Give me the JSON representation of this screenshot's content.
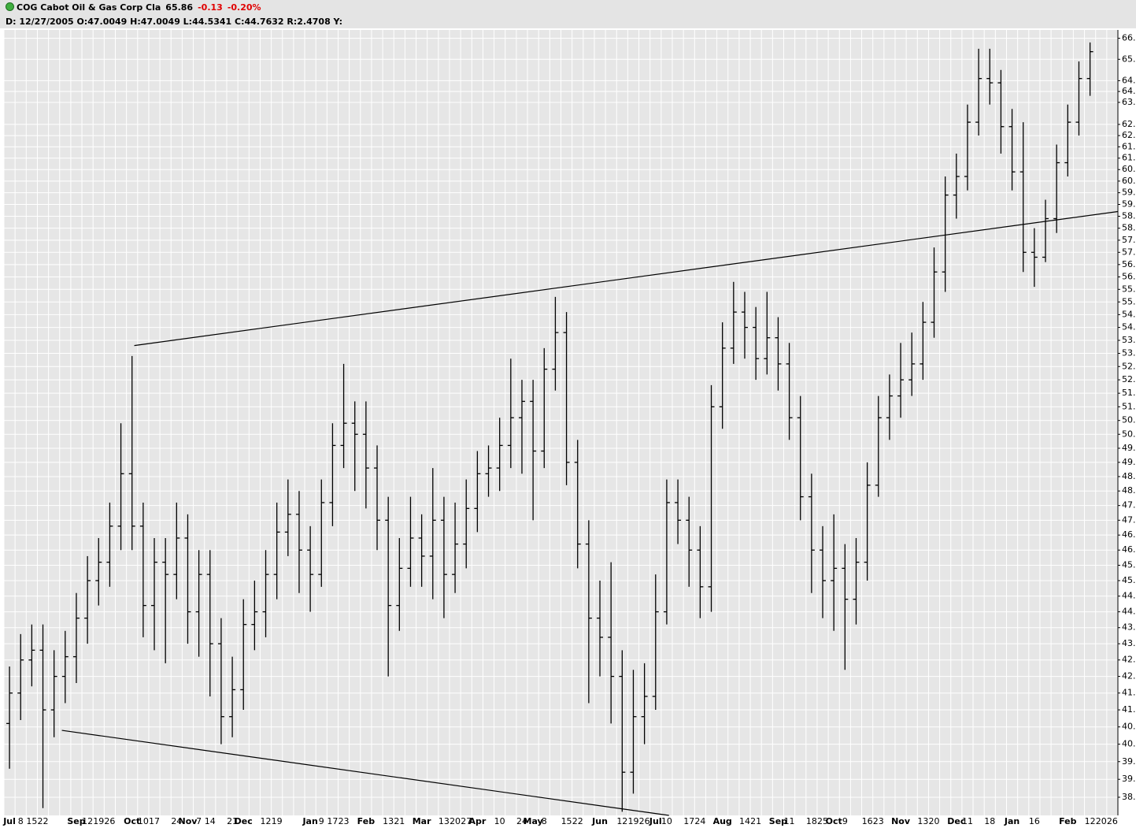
{
  "header": {
    "symbol_name": "COG Cabot Oil & Gas Corp Cla",
    "last": "65.86",
    "change": "-0.13",
    "change_pct": "-0.20%",
    "info": "D: 12/27/2005 O:47.0049 H:47.0049 L:44.5341 C:44.7632 R:2.4708 Y:"
  },
  "chart_data": {
    "type": "ohlc",
    "color": "#000000",
    "log_scale": true,
    "grid": true,
    "categories": [
      "Jul",
      "8",
      "15",
      "22",
      null,
      null,
      "Sep",
      "12",
      "19",
      "26",
      null,
      "Oct",
      "10",
      "17",
      null,
      "24",
      "Nov",
      "7",
      "14",
      null,
      "21",
      "Dec",
      null,
      "12",
      "19",
      null,
      null,
      "Jan",
      "9",
      "17",
      "23",
      null,
      "Feb",
      null,
      "13",
      "21",
      null,
      "Mar",
      null,
      "13",
      "20",
      "27",
      "Apr",
      null,
      "10",
      null,
      "24",
      "May",
      "8",
      null,
      "15",
      "22",
      null,
      "Jun",
      null,
      "12",
      "19",
      "26",
      "Jul",
      "10",
      null,
      "17",
      "24",
      null,
      "Aug",
      null,
      "14",
      "21",
      null,
      "Sep",
      "11",
      null,
      "18",
      "25",
      "Oct",
      "9",
      null,
      "16",
      "23",
      null,
      "Nov",
      null,
      "13",
      "20",
      null,
      "Dec",
      "11",
      null,
      "18",
      null,
      "Jan",
      null,
      "16",
      null,
      null,
      "Feb",
      null,
      "12",
      "20",
      "26"
    ],
    "open": [
      40.6,
      41.5,
      42.5,
      42.8,
      41.0,
      42.0,
      42.6,
      43.8,
      45.0,
      45.6,
      46.8,
      48.6,
      46.8,
      44.2,
      45.6,
      45.2,
      46.4,
      44.0,
      45.2,
      43.0,
      40.8,
      41.6,
      43.6,
      44.0,
      45.2,
      46.6,
      47.2,
      46.0,
      45.2,
      47.6,
      49.6,
      50.4,
      50.0,
      48.8,
      47.0,
      44.2,
      45.4,
      46.4,
      45.8,
      47.0,
      45.2,
      46.2,
      47.4,
      48.6,
      48.8,
      49.6,
      50.6,
      51.2,
      49.4,
      52.4,
      53.8,
      49.0,
      46.2,
      43.8,
      43.2,
      42.0,
      39.2,
      40.8,
      41.4,
      44.0,
      47.6,
      47.0,
      46.0,
      44.8,
      51.0,
      53.2,
      54.6,
      54.0,
      52.8,
      53.6,
      52.6,
      50.6,
      47.8,
      46.0,
      45.0,
      45.4,
      44.4,
      45.6,
      48.2,
      50.6,
      51.4,
      52.0,
      52.6,
      54.2,
      56.2,
      59.4,
      60.2,
      62.6,
      64.6,
      64.4,
      62.4,
      60.4,
      57.0,
      56.8,
      58.4,
      60.8,
      62.6,
      64.6,
      null,
      null
    ],
    "high": [
      42.3,
      43.3,
      43.6,
      43.6,
      42.8,
      43.4,
      44.6,
      45.8,
      46.4,
      47.6,
      50.4,
      52.9,
      47.6,
      46.4,
      46.4,
      47.6,
      47.2,
      46.0,
      46.0,
      43.8,
      42.6,
      44.4,
      45.0,
      46.0,
      47.6,
      48.4,
      48.0,
      46.8,
      48.4,
      50.4,
      52.6,
      51.2,
      51.2,
      49.6,
      47.8,
      46.4,
      47.8,
      47.2,
      48.8,
      47.8,
      47.6,
      48.4,
      49.4,
      49.6,
      50.6,
      52.8,
      52.0,
      52.0,
      53.2,
      55.2,
      54.6,
      49.8,
      47.0,
      45.0,
      45.6,
      42.8,
      42.2,
      42.4,
      45.2,
      48.4,
      48.4,
      47.8,
      46.8,
      51.8,
      54.2,
      55.8,
      55.4,
      54.8,
      55.4,
      54.4,
      53.4,
      51.4,
      48.6,
      46.8,
      47.2,
      46.2,
      46.4,
      49.0,
      51.4,
      52.2,
      53.4,
      53.8,
      55.0,
      57.2,
      60.2,
      61.2,
      63.4,
      66.0,
      66.0,
      65.0,
      63.2,
      62.6,
      58.0,
      59.2,
      61.6,
      63.4,
      65.4,
      66.3,
      null,
      null
    ],
    "low": [
      39.3,
      40.7,
      41.7,
      38.2,
      40.2,
      41.2,
      41.8,
      43.0,
      44.2,
      44.8,
      46.0,
      46.0,
      43.2,
      42.8,
      42.4,
      44.4,
      43.0,
      42.6,
      41.4,
      40.0,
      40.2,
      41.0,
      42.8,
      43.2,
      44.4,
      45.8,
      44.6,
      44.0,
      44.8,
      46.8,
      48.8,
      48.0,
      47.4,
      46.0,
      42.0,
      43.4,
      44.8,
      44.8,
      44.4,
      43.8,
      44.6,
      45.4,
      46.6,
      47.8,
      48.0,
      48.8,
      48.6,
      47.0,
      48.8,
      51.6,
      48.2,
      45.4,
      41.2,
      42.0,
      40.6,
      38.1,
      38.6,
      40.0,
      41.0,
      43.6,
      46.2,
      44.8,
      43.8,
      44.0,
      50.2,
      52.6,
      52.8,
      52.0,
      52.2,
      51.6,
      49.8,
      47.0,
      44.6,
      43.8,
      43.4,
      42.2,
      43.6,
      45.0,
      47.8,
      49.8,
      50.6,
      51.4,
      52.0,
      53.6,
      55.4,
      58.4,
      59.6,
      62.0,
      63.4,
      61.2,
      59.6,
      56.2,
      55.6,
      56.6,
      57.8,
      60.2,
      62.0,
      63.8,
      null,
      null
    ],
    "close": [
      41.5,
      42.5,
      42.8,
      41.0,
      42.0,
      42.6,
      43.8,
      45.0,
      45.6,
      46.8,
      48.6,
      46.8,
      44.2,
      45.6,
      45.2,
      46.4,
      44.0,
      45.2,
      43.0,
      40.8,
      41.6,
      43.6,
      44.0,
      45.2,
      46.6,
      47.2,
      46.0,
      45.2,
      47.6,
      49.6,
      50.4,
      50.0,
      48.8,
      47.0,
      44.2,
      45.4,
      46.4,
      45.8,
      47.0,
      45.2,
      46.2,
      47.4,
      48.6,
      48.8,
      49.6,
      50.6,
      51.2,
      49.4,
      52.4,
      53.8,
      49.0,
      46.2,
      43.8,
      43.2,
      42.0,
      39.2,
      40.8,
      41.4,
      44.0,
      47.6,
      47.0,
      46.0,
      44.8,
      51.0,
      53.2,
      54.6,
      54.0,
      52.8,
      53.6,
      52.6,
      50.6,
      47.8,
      46.0,
      45.0,
      45.4,
      44.4,
      45.6,
      48.2,
      50.6,
      51.4,
      52.0,
      52.6,
      54.2,
      56.2,
      59.4,
      60.2,
      62.6,
      64.6,
      64.4,
      62.4,
      60.4,
      57.0,
      56.8,
      58.4,
      60.8,
      62.6,
      64.6,
      65.86,
      null,
      null
    ],
    "trendlines": [
      {
        "x": [
          11.2,
          99.5
        ],
        "y": [
          53.3,
          58.7
        ]
      },
      {
        "x": [
          4.7,
          59.2
        ],
        "y": [
          40.4,
          38.0
        ]
      }
    ],
    "ylim": [
      38.0,
      66.9
    ],
    "yticks": [
      {
        "value": 66.5,
        "label": "66."
      },
      {
        "value": 65.5,
        "label": "65."
      },
      {
        "value": 64.5,
        "label": "64."
      },
      {
        "value": 64,
        "label": "64."
      },
      {
        "value": 63.5,
        "label": "63."
      },
      {
        "value": 62.5,
        "label": "62."
      },
      {
        "value": 62,
        "label": "62."
      },
      {
        "value": 61.5,
        "label": "61."
      },
      {
        "value": 61,
        "label": "61."
      },
      {
        "value": 60.5,
        "label": "60."
      },
      {
        "value": 60,
        "label": "60."
      },
      {
        "value": 59.5,
        "label": "59."
      },
      {
        "value": 59,
        "label": "59."
      },
      {
        "value": 58.5,
        "label": "58."
      },
      {
        "value": 58,
        "label": "58."
      },
      {
        "value": 57.5,
        "label": "57."
      },
      {
        "value": 57,
        "label": "57."
      },
      {
        "value": 56.5,
        "label": "56."
      },
      {
        "value": 56,
        "label": "56."
      },
      {
        "value": 55.5,
        "label": "55."
      },
      {
        "value": 55,
        "label": "55."
      },
      {
        "value": 54.5,
        "label": "54."
      },
      {
        "value": 54,
        "label": "54."
      },
      {
        "value": 53.5,
        "label": "53."
      },
      {
        "value": 53,
        "label": "53."
      },
      {
        "value": 52.5,
        "label": "52."
      },
      {
        "value": 52,
        "label": "52."
      },
      {
        "value": 51.5,
        "label": "51."
      },
      {
        "value": 51,
        "label": "51."
      },
      {
        "value": 50.5,
        "label": "50."
      },
      {
        "value": 50,
        "label": "50."
      },
      {
        "value": 49.5,
        "label": "49."
      },
      {
        "value": 49,
        "label": "49."
      },
      {
        "value": 48.5,
        "label": "48."
      },
      {
        "value": 48,
        "label": "48."
      },
      {
        "value": 47.5,
        "label": "47."
      },
      {
        "value": 47,
        "label": "47."
      },
      {
        "value": 46.5,
        "label": "46."
      },
      {
        "value": 46,
        "label": "46."
      },
      {
        "value": 45.5,
        "label": "45."
      },
      {
        "value": 45,
        "label": "45."
      },
      {
        "value": 44.5,
        "label": "44."
      },
      {
        "value": 44,
        "label": "44."
      },
      {
        "value": 43.5,
        "label": "43."
      },
      {
        "value": 43,
        "label": "43."
      },
      {
        "value": 42.5,
        "label": "42."
      },
      {
        "value": 42,
        "label": "42."
      },
      {
        "value": 41.5,
        "label": "41."
      },
      {
        "value": 41,
        "label": "41."
      },
      {
        "value": 40.5,
        "label": "40."
      },
      {
        "value": 40,
        "label": "40."
      },
      {
        "value": 39.5,
        "label": "39."
      },
      {
        "value": 39,
        "label": "39."
      },
      {
        "value": 38.5,
        "label": "38."
      }
    ]
  }
}
